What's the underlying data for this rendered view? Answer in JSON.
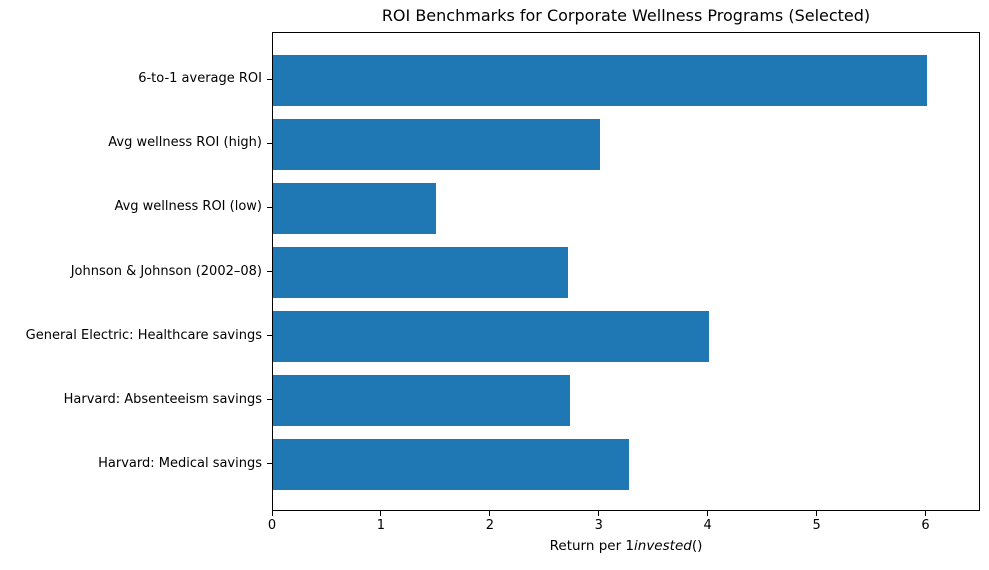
{
  "figure": {
    "background": "#ffffff"
  },
  "chart_data": {
    "type": "bar",
    "orientation": "horizontal",
    "title": "ROI Benchmarks for Corporate Wellness Programs (Selected)",
    "categories": [
      "6-to-1 average ROI",
      "Avg wellness ROI (high)",
      "Avg wellness ROI (low)",
      "Johnson & Johnson (2002–08)",
      "General Electric: Healthcare savings",
      "Harvard: Absenteeism savings",
      "Harvard: Medical savings"
    ],
    "values": [
      6.0,
      3.0,
      1.5,
      2.71,
      4.0,
      2.73,
      3.27
    ],
    "xlabel_display": "Return per 1invested()",
    "xlabel_parts": {
      "prefix": "Return per 1",
      "italic": "invested",
      "suffix": "()"
    },
    "xlim": [
      0,
      6.5
    ],
    "xticks": [
      0,
      1,
      2,
      3,
      4,
      5,
      6
    ],
    "bar_color": "#1f77b4",
    "axis_color": "#000000",
    "text_color": "#000000",
    "grid": false,
    "legend_position": "none"
  }
}
